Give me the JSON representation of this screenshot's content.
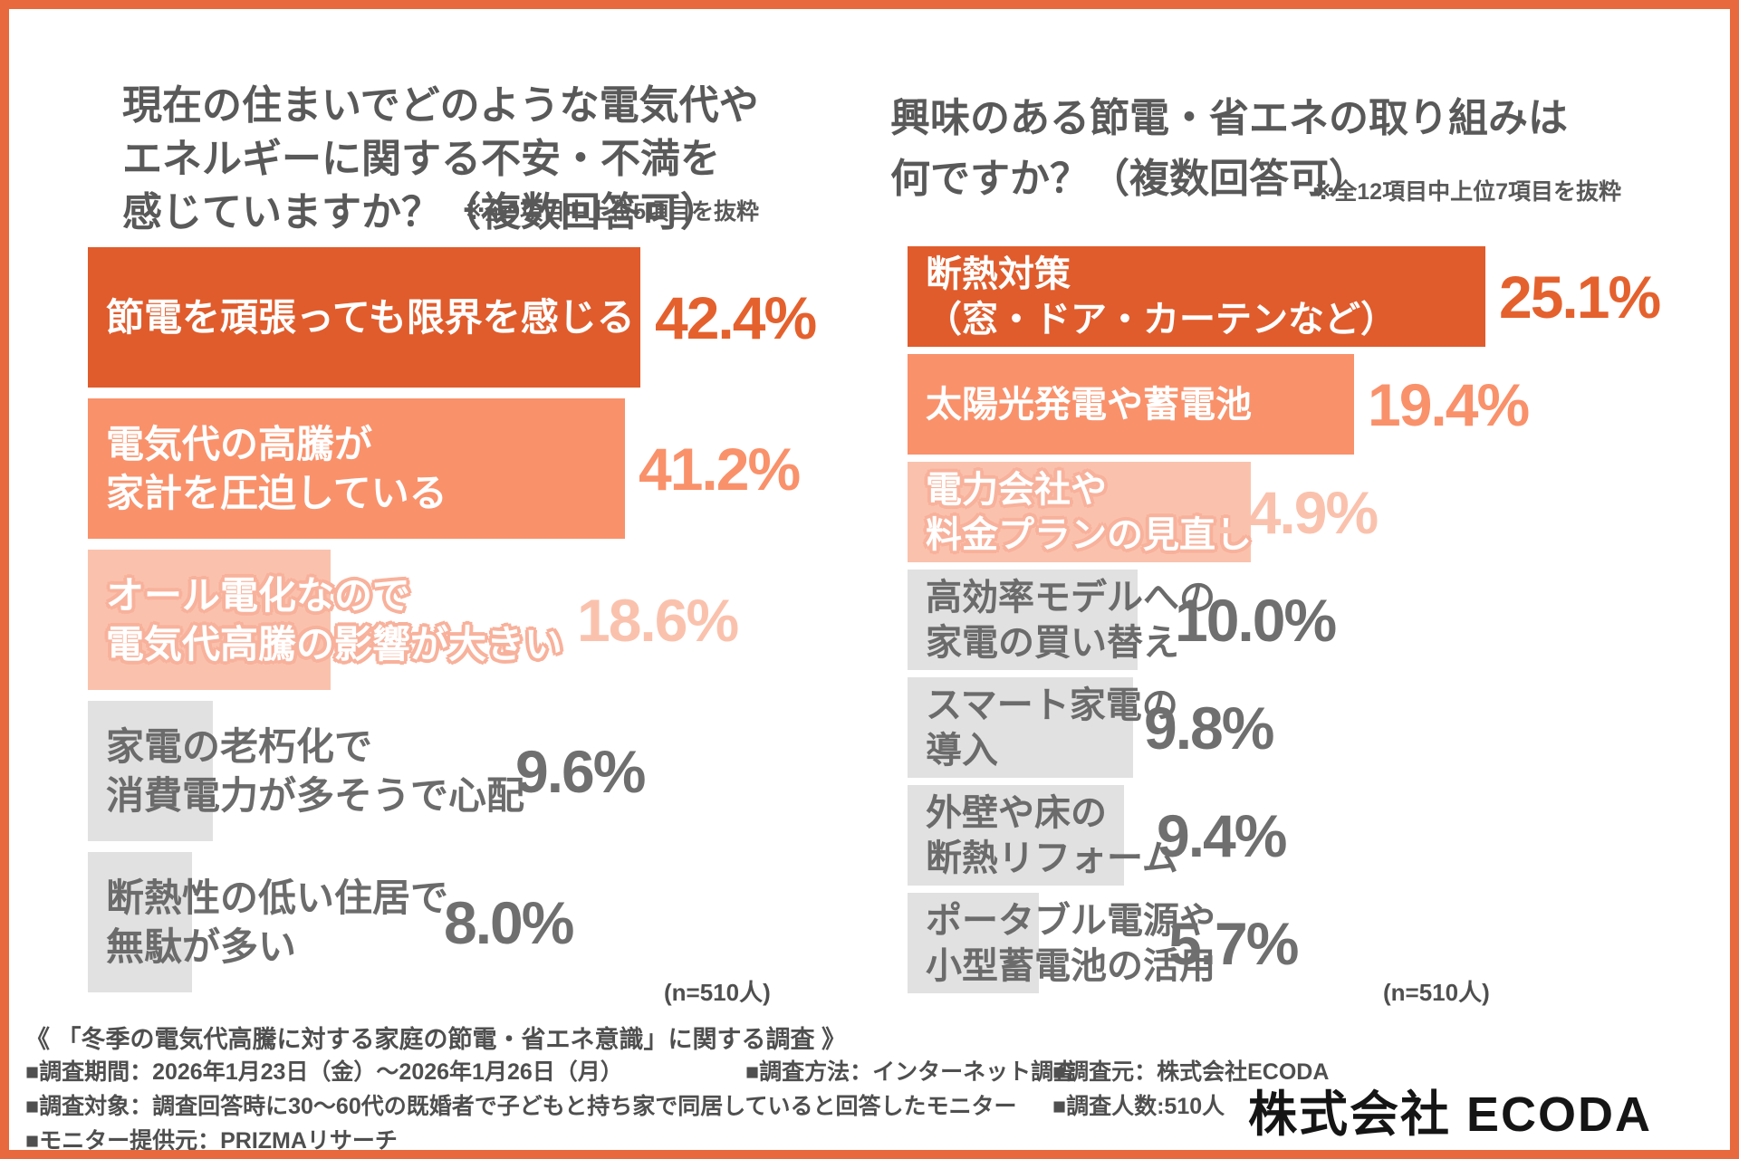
{
  "palette": {
    "frame": "#E8693E",
    "dark": {
      "bar": "#E05C2C",
      "value": "#E4612E"
    },
    "mid": {
      "bar": "#F9916B",
      "value": "#F9916B"
    },
    "light": {
      "bar": "#FAC2AD",
      "value": "#FAC2AD"
    },
    "gray": {
      "bar": "#E1E1E1",
      "value": "#6F6F6F"
    }
  },
  "left_chart": {
    "title_lines": [
      "現在の住まいでどのような電気代や",
      "エネルギーに関する不安・不満を",
      "感じていますか？（複数回答可）"
    ],
    "note": "※全9項目中上位5項目を抜粋",
    "n_label": "(n=510人)",
    "bars": [
      {
        "label_lines": [
          "節電を頑張っても限界を感じる"
        ],
        "value": 42.4,
        "value_label": "42.4%",
        "tone": "dark"
      },
      {
        "label_lines": [
          "電気代の高騰が",
          "家計を圧迫している"
        ],
        "value": 41.2,
        "value_label": "41.2%",
        "tone": "mid"
      },
      {
        "label_lines": [
          "オール電化なので",
          "電気代高騰の影響が大きい"
        ],
        "value": 18.6,
        "value_label": "18.6%",
        "tone": "light"
      },
      {
        "label_lines": [
          "家電の老朽化で",
          "消費電力が多そうで心配"
        ],
        "value": 9.6,
        "value_label": "9.6%",
        "tone": "gray"
      },
      {
        "label_lines": [
          "断熱性の低い住居で",
          "無駄が多い"
        ],
        "value": 8.0,
        "value_label": "8.0%",
        "tone": "gray"
      }
    ]
  },
  "right_chart": {
    "title_lines": [
      "興味のある節電・省エネの取り組みは",
      "何ですか？（複数回答可）"
    ],
    "note": "※全12項目中上位7項目を抜粋",
    "n_label": "(n=510人)",
    "bars": [
      {
        "label_lines": [
          "断熱対策",
          "（窓・ドア・カーテンなど）"
        ],
        "value": 25.1,
        "value_label": "25.1%",
        "tone": "dark"
      },
      {
        "label_lines": [
          "太陽光発電や蓄電池"
        ],
        "value": 19.4,
        "value_label": "19.4%",
        "tone": "mid"
      },
      {
        "label_lines": [
          "電力会社や",
          "料金プランの見直し"
        ],
        "value": 14.9,
        "value_label": "14.9%",
        "tone": "light"
      },
      {
        "label_lines": [
          "高効率モデルへの",
          "家電の買い替え"
        ],
        "value": 10.0,
        "value_label": "10.0%",
        "tone": "gray"
      },
      {
        "label_lines": [
          "スマート家電の",
          "導入"
        ],
        "value": 9.8,
        "value_label": "9.8%",
        "tone": "gray"
      },
      {
        "label_lines": [
          "外壁や床の",
          "断熱リフォーム"
        ],
        "value": 9.4,
        "value_label": "9.4%",
        "tone": "gray"
      },
      {
        "label_lines": [
          "ポータブル電源や",
          "小型蓄電池の活用"
        ],
        "value": 5.7,
        "value_label": "5.7%",
        "tone": "gray"
      }
    ]
  },
  "footer": {
    "survey_title": "《 「冬季の電気代高騰に対する家庭の節電・省エネ意識」に関する調査 》",
    "period": "■調査期間：2026年1月23日（金）～2026年1月26日（月）",
    "method": "■調査方法：インターネット調査",
    "source": "■調査元：株式会社ECODA",
    "target": "■調査対象：調査回答時に30～60代の既婚者で子どもと持ち家で同居していると回答したモニター",
    "count": "■調査人数:510人",
    "monitor": "■モニター提供元：PRIZMAリサーチ",
    "logo": "株式会社 ECODA"
  },
  "chart_data": [
    {
      "type": "bar",
      "orientation": "horizontal",
      "title": "現在の住まいでどのような電気代やエネルギーに関する不安・不満を感じていますか？（複数回答可）",
      "note": "※全9項目中上位5項目を抜粋",
      "n": 510,
      "unit": "%",
      "categories": [
        "節電を頑張っても限界を感じる",
        "電気代の高騰が家計を圧迫している",
        "オール電化なので電気代高騰の影響が大きい",
        "家電の老朽化で消費電力が多そうで心配",
        "断熱性の低い住居で無駄が多い"
      ],
      "values": [
        42.4,
        41.2,
        18.6,
        9.6,
        8.0
      ],
      "legend": false,
      "grid": false
    },
    {
      "type": "bar",
      "orientation": "horizontal",
      "title": "興味のある節電・省エネの取り組みは何ですか？（複数回答可）",
      "note": "※全12項目中上位7項目を抜粋",
      "n": 510,
      "unit": "%",
      "categories": [
        "断熱対策（窓・ドア・カーテンなど）",
        "太陽光発電や蓄電池",
        "電力会社や料金プランの見直し",
        "高効率モデルへの家電の買い替え",
        "スマート家電の導入",
        "外壁や床の断熱リフォーム",
        "ポータブル電源や小型蓄電池の活用"
      ],
      "values": [
        25.1,
        19.4,
        14.9,
        10.0,
        9.8,
        9.4,
        5.7
      ],
      "legend": false,
      "grid": false
    }
  ]
}
